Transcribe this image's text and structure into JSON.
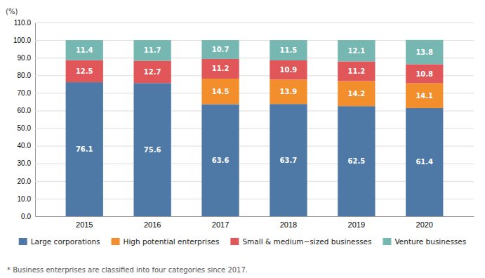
{
  "chart_data": {
    "type": "bar",
    "stacked": true,
    "categories": [
      "2015",
      "2016",
      "2017",
      "2018",
      "2019",
      "2020"
    ],
    "series": [
      {
        "name": "Large corporations",
        "values": [
          76.1,
          75.6,
          63.6,
          63.7,
          62.5,
          61.4
        ]
      },
      {
        "name": "High potential enterprises",
        "values": [
          0.0,
          0.0,
          14.5,
          13.9,
          14.2,
          14.1
        ],
        "value_labels": [
          null,
          null,
          "14.5",
          "13.9",
          "14.2",
          "14.1"
        ]
      },
      {
        "name": "Small & medium−sized businesses",
        "values": [
          12.5,
          12.7,
          11.2,
          10.9,
          11.2,
          10.8
        ]
      },
      {
        "name": "Venture businesses",
        "values": [
          11.4,
          11.7,
          10.7,
          11.5,
          12.1,
          13.8
        ]
      }
    ],
    "y_label": "(%)",
    "annotations": [
      "* Business enterprises are classified into four categories since 2017."
    ],
    "ylim": [
      0,
      110
    ],
    "yticks": [
      {
        "value": 0,
        "label": "0.0"
      },
      {
        "value": 10,
        "label": "10.0"
      },
      {
        "value": 20,
        "label": "20.0"
      },
      {
        "value": 30,
        "label": "30.0"
      },
      {
        "value": 40,
        "label": "40.0"
      },
      {
        "value": 50,
        "label": "50.0"
      },
      {
        "value": 60,
        "label": "60.0"
      },
      {
        "value": 70,
        "label": "70.0"
      },
      {
        "value": 80,
        "label": "80.0"
      },
      {
        "value": 90,
        "label": "90.0"
      },
      {
        "value": 100,
        "label": "100.0"
      },
      {
        "value": 110,
        "label": "110.0"
      }
    ],
    "grid": true,
    "data_labels": true,
    "legend": "bottom"
  }
}
